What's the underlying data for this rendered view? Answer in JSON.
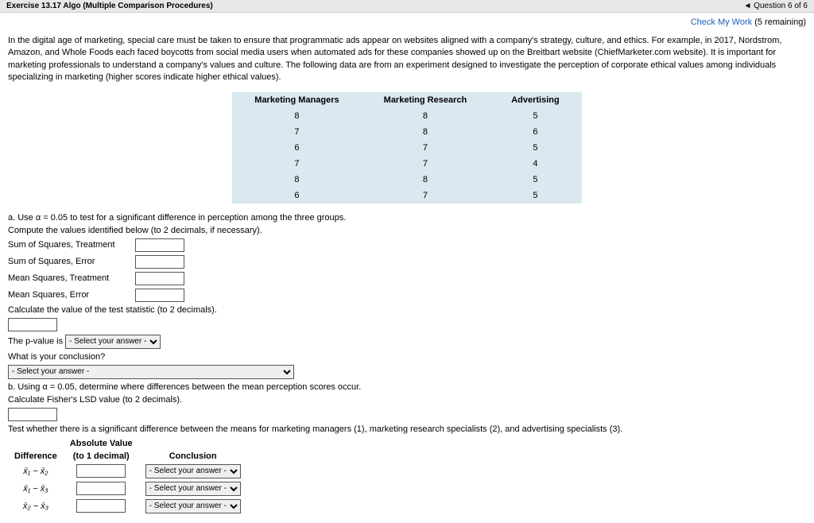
{
  "topbar": {
    "left": "Exercise 13.17 Algo (Multiple Comparison Procedures)",
    "right": "◄ Question 6 of 6"
  },
  "check": {
    "link": "Check My Work",
    "suffix": " (5 remaining)"
  },
  "intro": "In the digital age of marketing, special care must be taken to ensure that programmatic ads appear on websites aligned with a company's strategy, culture, and ethics. For example, in 2017, Nordstrom, Amazon, and Whole Foods each faced boycotts from social media users when automated ads for these companies showed up on the Breitbart website (ChiefMarketer.com website). It is important for marketing professionals to understand a company's values and culture. The following data are from an experiment designed to investigate the perception of corporate ethical values among individuals specializing in marketing (higher scores indicate higher ethical values).",
  "table": {
    "headers": [
      "Marketing Managers",
      "Marketing Research",
      "Advertising"
    ],
    "rows": [
      [
        "8",
        "8",
        "5"
      ],
      [
        "7",
        "8",
        "6"
      ],
      [
        "6",
        "7",
        "5"
      ],
      [
        "7",
        "7",
        "4"
      ],
      [
        "8",
        "8",
        "5"
      ],
      [
        "6",
        "7",
        "5"
      ]
    ],
    "bg": "#dae8ef"
  },
  "a": {
    "prompt": "a. Use α = 0.05 to test for a significant difference in perception among the three groups.",
    "compute": "Compute the values identified below (to 2 decimals, if necessary).",
    "fields": [
      "Sum of Squares, Treatment",
      "Sum of Squares, Error",
      "Mean Squares, Treatment",
      "Mean Squares, Error"
    ],
    "calcstat": "Calculate the value of the test statistic (to 2 decimals).",
    "pvalue_label": "The p-value is",
    "pvalue_placeholder": "- Select your answer -",
    "conclusion_q": "What is your conclusion?",
    "conclusion_placeholder": "- Select your answer -"
  },
  "b": {
    "prompt": "b. Using α = 0.05, determine where differences between the mean perception scores occur.",
    "lsd": "Calculate Fisher's LSD value (to 2 decimals).",
    "test_text": "Test whether there is a significant difference between the means for marketing managers (1), marketing research specialists (2), and advertising specialists (3).",
    "diff_header1": "Difference",
    "diff_header2a": "Absolute Value",
    "diff_header2b": "(to 1 decimal)",
    "diff_header3": "Conclusion",
    "rows": [
      {
        "label": "x̄₁ − x̄₂"
      },
      {
        "label": "x̄₁ − x̄₃"
      },
      {
        "label": "x̄₂ − x̄₃"
      }
    ],
    "sel_placeholder": "- Select your answer -"
  }
}
